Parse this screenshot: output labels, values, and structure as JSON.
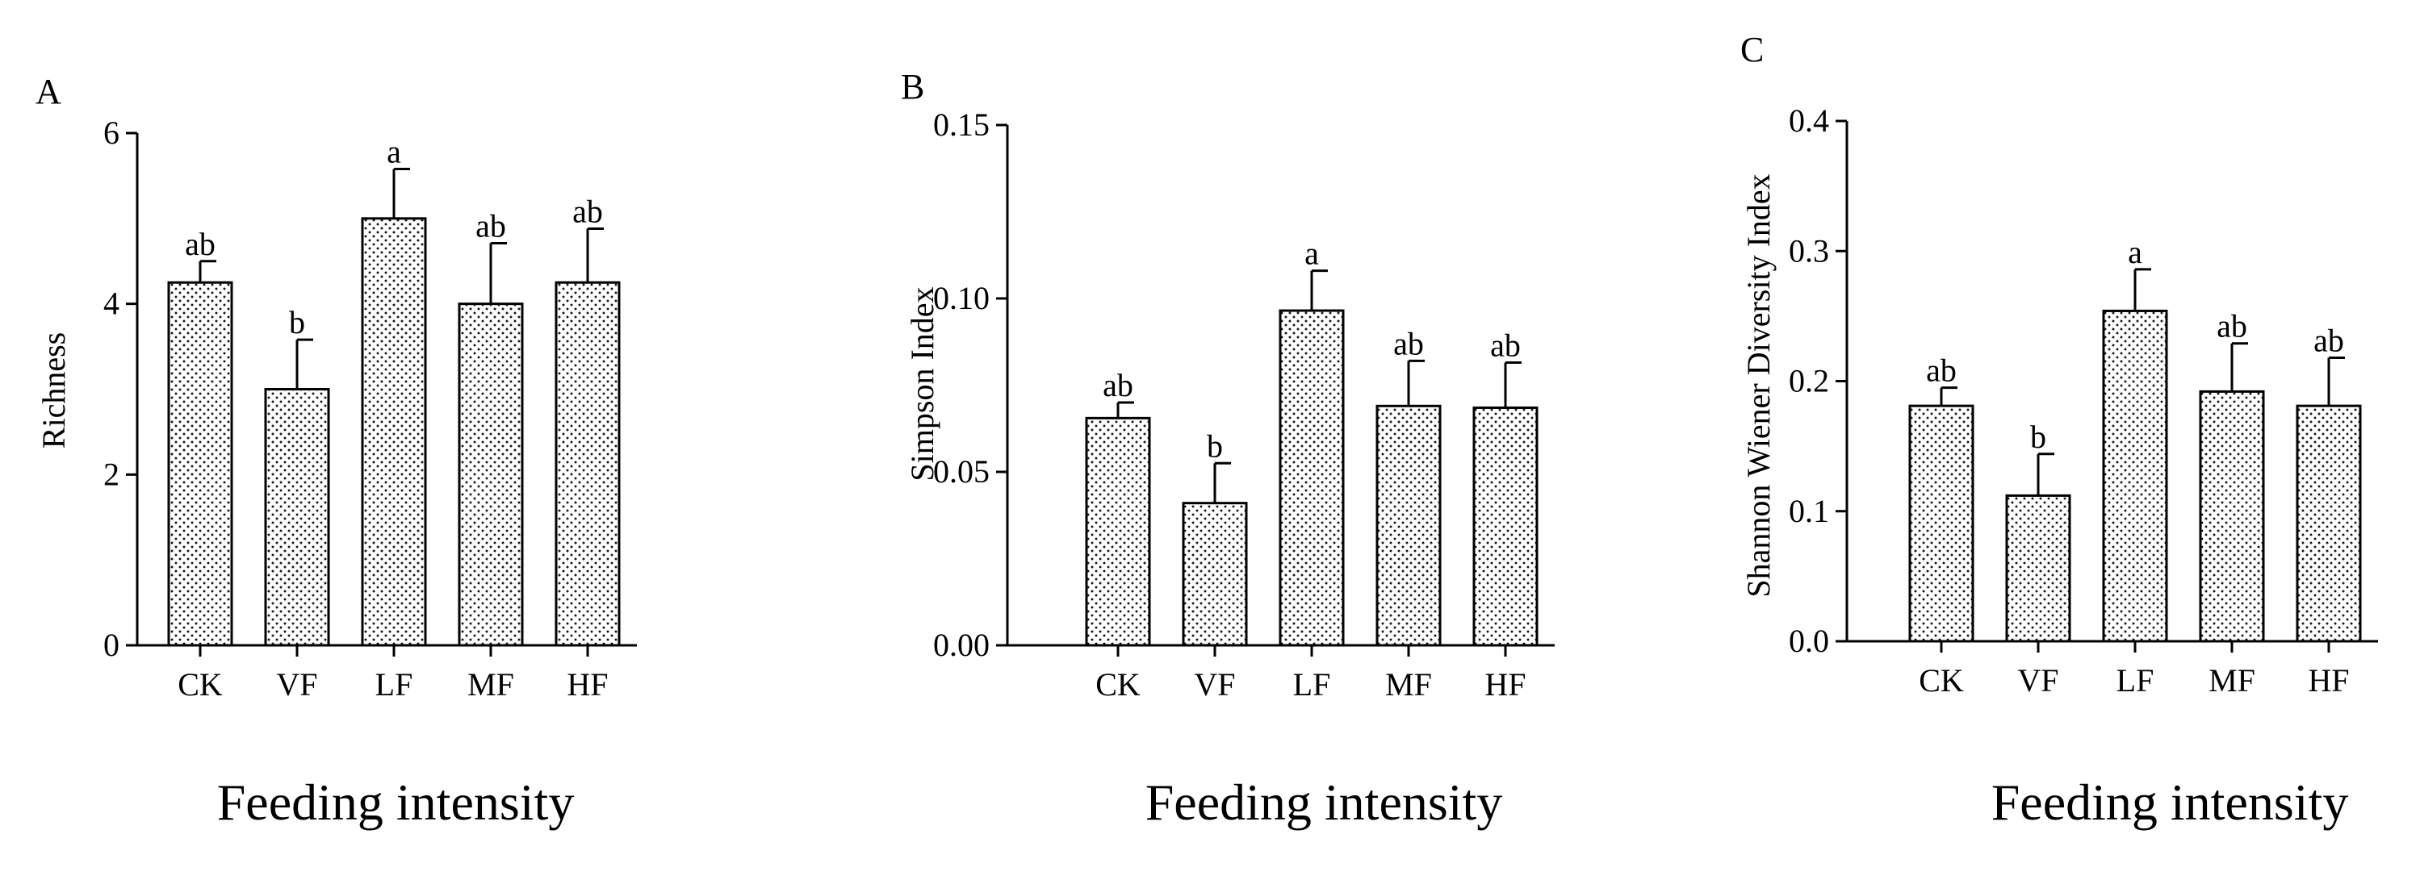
{
  "figure": {
    "background_color": "#ffffff",
    "bar_fill_color": "#ffffff",
    "bar_dot_color": "#1a1a1a",
    "line_color": "#000000"
  },
  "chart_data": [
    {
      "type": "bar",
      "panel_label": "A",
      "title": "",
      "xlabel": "Feeding intensity",
      "ylabel": "Richness",
      "categories": [
        "CK",
        "VF",
        "LF",
        "MF",
        "HF"
      ],
      "values": [
        4.25,
        3.0,
        5.0,
        4.0,
        4.25
      ],
      "errors": [
        0.25,
        0.58,
        0.58,
        0.71,
        0.63
      ],
      "significance": [
        "ab",
        "b",
        "a",
        "ab",
        "ab"
      ],
      "ylim": [
        0,
        6
      ],
      "yticks": [
        0,
        2,
        4,
        6
      ],
      "ytick_labels": [
        "0",
        "2",
        "4",
        "6"
      ],
      "grid": false
    },
    {
      "type": "bar",
      "panel_label": "B",
      "title": "",
      "xlabel": "Feeding intensity",
      "ylabel": "Simpson Index",
      "categories": [
        "CK",
        "VF",
        "LF",
        "MF",
        "HF"
      ],
      "values": [
        0.0655,
        0.041,
        0.0965,
        0.069,
        0.0685
      ],
      "errors": [
        0.0045,
        0.0115,
        0.0115,
        0.013,
        0.013
      ],
      "significance": [
        "ab",
        "b",
        "a",
        "ab",
        "ab"
      ],
      "ylim": [
        0,
        0.15
      ],
      "yticks": [
        0,
        0.05,
        0.1,
        0.15
      ],
      "ytick_labels": [
        "0.00",
        "0.05",
        "0.10",
        "0.15"
      ],
      "grid": false
    },
    {
      "type": "bar",
      "panel_label": "C",
      "title": "",
      "xlabel": "Feeding intensity",
      "ylabel": "Shannon Wiener Diversity Index",
      "categories": [
        "CK",
        "VF",
        "LF",
        "MF",
        "HF"
      ],
      "values": [
        0.181,
        0.112,
        0.254,
        0.192,
        0.181
      ],
      "errors": [
        0.014,
        0.032,
        0.032,
        0.037,
        0.037
      ],
      "significance": [
        "ab",
        "b",
        "a",
        "ab",
        "ab"
      ],
      "ylim": [
        0,
        0.4
      ],
      "yticks": [
        0,
        0.1,
        0.2,
        0.3,
        0.4
      ],
      "ytick_labels": [
        "0.0",
        "0.1",
        "0.2",
        "0.3",
        "0.4"
      ],
      "grid": false
    }
  ]
}
